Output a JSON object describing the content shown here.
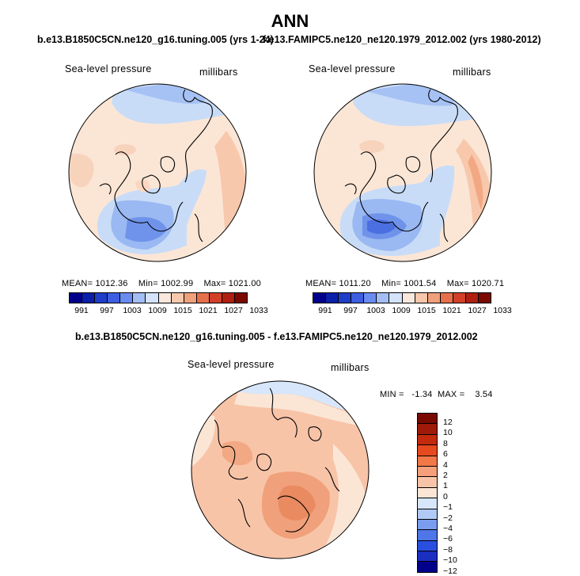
{
  "title": "ANN",
  "panels": {
    "left": {
      "case": "b.e13.B1850C5CN.ne120_g16.tuning.005 (yrs 1-24)",
      "variable": "Sea-level pressure",
      "units": "millibars",
      "mean": "MEAN= 1012.36",
      "min": "Min= 1002.99",
      "max": "Max= 1021.00"
    },
    "right": {
      "case": "f.e13.FAMIPC5.ne120_ne120.1979_2012.002 (yrs 1980-2012)",
      "variable": "Sea-level pressure",
      "units": "millibars",
      "mean": "MEAN= 1011.20",
      "min": "Min= 1001.54",
      "max": "Max= 1020.71"
    },
    "diff": {
      "case": "b.e13.B1850C5CN.ne120_g16.tuning.005 - f.e13.FAMIPC5.ne120_ne120.1979_2012.002",
      "variable": "Sea-level pressure",
      "units": "millibars",
      "minmax": "MIN =   -1.34  MAX =    3.54"
    }
  },
  "colorbar_abs": {
    "colors": [
      "#00008b",
      "#0a1faa",
      "#1f3ec8",
      "#3d5ee0",
      "#6a8cf0",
      "#a3bdf5",
      "#d4e3fa",
      "#fbe8dc",
      "#f8c8ad",
      "#f0a07a",
      "#e6704b",
      "#d2402a",
      "#b02010",
      "#7a0a00"
    ],
    "ticks": [
      "991",
      "997",
      "1003",
      "1009",
      "1015",
      "1021",
      "1027",
      "1033"
    ]
  },
  "colorbar_diff": {
    "colors": [
      "#7a0a00",
      "#a01a0a",
      "#c42a0e",
      "#e64a1e",
      "#f27848",
      "#f5a07a",
      "#f8c4a8",
      "#fbe6d6",
      "#d7e6fa",
      "#b1caf5",
      "#7a9df0",
      "#4f76e8",
      "#2a4fe0",
      "#1a2ec0",
      "#00008b"
    ],
    "ticks": [
      "12",
      "10",
      "8",
      "6",
      "4",
      "2",
      "1",
      "0",
      "−1",
      "−2",
      "−4",
      "−6",
      "−8",
      "−10",
      "−12"
    ]
  }
}
